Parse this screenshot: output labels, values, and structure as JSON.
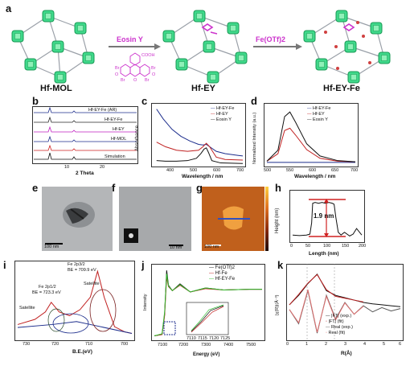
{
  "panel_labels": [
    "a",
    "b",
    "c",
    "d",
    "e",
    "f",
    "g",
    "h",
    "i",
    "j",
    "k"
  ],
  "panel_a": {
    "mof_labels": [
      "Hf-MOL",
      "Hf-EY",
      "Hf-EY-Fe"
    ],
    "ey_highlight_color": "#cc33cc",
    "step1_reagent": "Eosin Y",
    "step2_reagent": "Fe(OTf)2",
    "ey_molecule_labels": [
      "COOH",
      "Br",
      "Br",
      "Br",
      "Br",
      "O",
      "O",
      "O"
    ]
  },
  "panel_b": {
    "xlabel": "2 Theta",
    "tick_labels": [
      "10",
      "20"
    ],
    "series_labels": [
      "Hf-EY-Fe (AR)",
      "Hf-EY-Fe",
      "Hf-EY",
      "Hf-MOL",
      "Simulation"
    ],
    "series_colors": [
      "#1c2d8c",
      "#2a2a2a",
      "#c020c0",
      "#1c2d8c",
      "#d02020",
      "#111111"
    ]
  },
  "chart_data": [
    {
      "type": "line",
      "panel": "c",
      "xlabel": "Wavelength / nm",
      "ylabel": "Absorbance",
      "xlim": [
        300,
        700
      ],
      "x_ticks": [
        400,
        500,
        600,
        700
      ],
      "series": [
        {
          "name": "Hf-EY-Fe",
          "color": "#1c2d8c",
          "x": [
            310,
            340,
            380,
            420,
            460,
            500,
            520,
            535,
            550,
            580,
            620,
            680,
            700
          ],
          "y": [
            0.95,
            0.78,
            0.6,
            0.48,
            0.4,
            0.34,
            0.33,
            0.34,
            0.3,
            0.22,
            0.18,
            0.15,
            0.14
          ]
        },
        {
          "name": "Hf-EY",
          "color": "#c02020",
          "x": [
            310,
            350,
            400,
            450,
            500,
            520,
            535,
            550,
            580,
            620,
            700
          ],
          "y": [
            0.38,
            0.3,
            0.24,
            0.22,
            0.24,
            0.3,
            0.36,
            0.3,
            0.12,
            0.08,
            0.07
          ]
        },
        {
          "name": "Eosin Y",
          "color": "#111111",
          "x": [
            310,
            350,
            400,
            450,
            490,
            510,
            525,
            535,
            545,
            560,
            600,
            700
          ],
          "y": [
            0.06,
            0.05,
            0.05,
            0.06,
            0.1,
            0.18,
            0.26,
            0.28,
            0.2,
            0.06,
            0.02,
            0.01
          ]
        }
      ]
    },
    {
      "type": "line",
      "panel": "d",
      "xlabel": "Wavelength / nm",
      "ylabel": "Normalized Intensity (a.u.)",
      "xlim": [
        500,
        700
      ],
      "x_ticks": [
        500,
        550,
        600,
        650,
        700
      ],
      "series": [
        {
          "name": "Hf-EY-Fe",
          "color": "#1c2d8c",
          "x": [
            500,
            600,
            700
          ],
          "y": [
            0.03,
            0.03,
            0.03
          ]
        },
        {
          "name": "Hf-EY",
          "color": "#c02020",
          "x": [
            500,
            525,
            540,
            552,
            565,
            590,
            620,
            660,
            700
          ],
          "y": [
            0.05,
            0.18,
            0.58,
            0.62,
            0.5,
            0.25,
            0.1,
            0.05,
            0.04
          ]
        },
        {
          "name": "Eosin Y",
          "color": "#111111",
          "x": [
            500,
            525,
            540,
            552,
            565,
            590,
            620,
            660,
            700
          ],
          "y": [
            0.05,
            0.24,
            0.82,
            0.9,
            0.72,
            0.35,
            0.14,
            0.06,
            0.04
          ]
        }
      ]
    },
    {
      "type": "line",
      "panel": "h",
      "xlabel": "Length (nm)",
      "ylabel": "Height (nm)",
      "xlim": [
        0,
        200
      ],
      "ylim": [
        0,
        2.5
      ],
      "x_ticks": [
        0,
        50,
        100,
        150,
        200
      ],
      "y_ticks": [
        0.0,
        0.5,
        1.0,
        1.5,
        2.0,
        2.5
      ],
      "annotation": "1.9 nm",
      "series": [
        {
          "name": "",
          "color": "#111111",
          "x": [
            0,
            20,
            40,
            50,
            55,
            58,
            65,
            75,
            85,
            95,
            105,
            115,
            120,
            125,
            132,
            140,
            150,
            165,
            175,
            185,
            200
          ],
          "y": [
            0.25,
            0.22,
            0.25,
            0.3,
            0.9,
            1.95,
            2.0,
            1.95,
            2.0,
            1.95,
            2.0,
            1.95,
            1.9,
            1.2,
            0.4,
            0.25,
            0.4,
            0.2,
            0.3,
            0.6,
            0.25
          ]
        }
      ]
    },
    {
      "type": "line",
      "panel": "i",
      "xlabel": "B.E.(eV)",
      "xlim": [
        730,
        700
      ],
      "x_ticks": [
        730,
        720,
        710,
        700
      ],
      "annotations": [
        "Fe 2p3/2",
        "BE = 709.9 eV",
        "Fe 2p1/2",
        "BE = 723.3 eV",
        "Satellite",
        "Satellite"
      ],
      "series": [
        {
          "name": "envelope",
          "color": "#c02020",
          "x": [
            733,
            728,
            725,
            723.3,
            721,
            718,
            715,
            712,
            709.9,
            708,
            705,
            702,
            700
          ],
          "y": [
            0.18,
            0.25,
            0.35,
            0.48,
            0.35,
            0.3,
            0.38,
            0.55,
            0.9,
            0.55,
            0.15,
            0.08,
            0.06
          ]
        },
        {
          "name": "background",
          "color": "#1c2d8c",
          "x": [
            733,
            723,
            716,
            712,
            700
          ],
          "y": [
            0.14,
            0.18,
            0.22,
            0.18,
            0.06
          ]
        }
      ]
    },
    {
      "type": "line",
      "panel": "j",
      "xlabel": "Energy (eV)",
      "ylabel": "Intensity",
      "x_ticks": [
        7100,
        7200,
        7300,
        7400,
        7500
      ],
      "inset_x_ticks": [
        7110,
        7115,
        7120,
        7125
      ],
      "series": [
        {
          "name": "Fe(OTf)2",
          "color": "#111111",
          "x": [
            7080,
            7110,
            7120,
            7128,
            7135,
            7150,
            7180,
            7220,
            7280,
            7350,
            7450,
            7500
          ],
          "y": [
            0.03,
            0.05,
            0.35,
            1.0,
            0.78,
            0.7,
            0.8,
            0.68,
            0.74,
            0.71,
            0.72,
            0.72
          ]
        },
        {
          "name": "Hf-Fe",
          "color": "#c02020",
          "x": [
            7080,
            7110,
            7120,
            7128,
            7135,
            7150,
            7180,
            7220,
            7280,
            7350,
            7450,
            7500
          ],
          "y": [
            0.03,
            0.05,
            0.33,
            0.9,
            0.76,
            0.7,
            0.78,
            0.68,
            0.73,
            0.71,
            0.72,
            0.72
          ]
        },
        {
          "name": "Hf-EY-Fe",
          "color": "#30c030",
          "x": [
            7080,
            7110,
            7120,
            7128,
            7135,
            7150,
            7180,
            7220,
            7280,
            7350,
            7450,
            7500
          ],
          "y": [
            0.03,
            0.06,
            0.38,
            0.95,
            0.77,
            0.7,
            0.79,
            0.68,
            0.74,
            0.71,
            0.72,
            0.72
          ]
        }
      ]
    },
    {
      "type": "line",
      "panel": "k",
      "xlabel": "R(Å)",
      "ylabel": "|χ(R)|(Å⁻³)",
      "xlim": [
        0,
        6
      ],
      "x_ticks": [
        0,
        1,
        2,
        3,
        4,
        5,
        6
      ],
      "series": [
        {
          "name": "|FT| (exp.)",
          "color": "#111111",
          "x": [
            0,
            0.5,
            1.0,
            1.5,
            2.0,
            2.5,
            3.0,
            3.5,
            4.0,
            4.5,
            5.0,
            5.5,
            6.0
          ],
          "y": [
            0.1,
            0.3,
            0.55,
            0.75,
            0.4,
            0.3,
            0.25,
            0.2,
            0.15,
            0.12,
            0.1,
            0.08,
            0.06
          ]
        },
        {
          "name": "|FT| (fit)",
          "color": "#c02020",
          "x": [
            0,
            0.5,
            1.0,
            1.5,
            2.0,
            2.5,
            3.0,
            3.5,
            4.0
          ],
          "y": [
            0.1,
            0.32,
            0.56,
            0.74,
            0.42,
            0.28,
            0.24,
            0.2,
            0.16
          ]
        },
        {
          "name": "Real (exp.)",
          "color": "#555555",
          "x": [
            0,
            0.5,
            1.0,
            1.5,
            2.0,
            2.5,
            3.0,
            3.5,
            4.0,
            4.5,
            5.0,
            5.5,
            6.0
          ],
          "y": [
            0.0,
            -0.3,
            0.4,
            -0.5,
            0.3,
            -0.2,
            0.15,
            -0.1,
            0.08,
            -0.05,
            0.04,
            -0.03,
            0.02
          ]
        },
        {
          "name": "Real (fit)",
          "color": "#e07070",
          "x": [
            0,
            0.5,
            1.0,
            1.5,
            2.0,
            2.5,
            3.0,
            3.5,
            4.0
          ],
          "y": [
            0.0,
            -0.28,
            0.42,
            -0.48,
            0.28,
            -0.22,
            0.14,
            -0.1,
            0.07
          ]
        }
      ]
    }
  ],
  "micrographs": {
    "e_scale": "100 nm",
    "f_scale": "10 nm",
    "g_scale": "100 nm",
    "g_colorbar": [
      "#1a0a05",
      "#8a2a0a",
      "#e07020",
      "#ffd040"
    ]
  }
}
